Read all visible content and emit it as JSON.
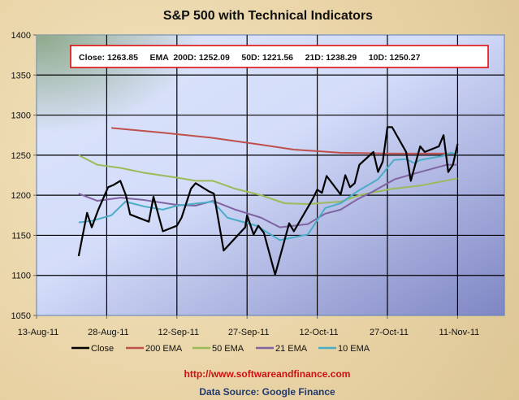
{
  "chart_data": {
    "type": "line",
    "title": "S&P 500 with Technical Indicators",
    "x_unit": "days since 13-Aug-11",
    "xlim": [
      0,
      100
    ],
    "ylim": [
      1050,
      1400
    ],
    "yticks": [
      1050,
      1100,
      1150,
      1200,
      1250,
      1300,
      1350,
      1400
    ],
    "xtick_labels": [
      "13-Aug-11",
      "28-Aug-11",
      "12-Sep-11",
      "27-Sep-11",
      "12-Oct-11",
      "27-Oct-11",
      "11-Nov-11"
    ],
    "xtick_days": [
      0,
      15,
      30,
      45,
      60,
      75,
      90
    ],
    "grid": true,
    "legend_position": "bottom",
    "info_box": "Close: 1263.85     EMA  200D: 1252.09     50D: 1221.56     21D: 1238.29     10D: 1250.27",
    "series": [
      {
        "name": "Close",
        "color": "#000000",
        "points": [
          [
            9,
            1124
          ],
          [
            10.8,
            1178
          ],
          [
            11.8,
            1160
          ],
          [
            13.2,
            1182
          ],
          [
            15.3,
            1210
          ],
          [
            16.5,
            1213
          ],
          [
            17.9,
            1218
          ],
          [
            19.1,
            1200
          ],
          [
            20,
            1176
          ],
          [
            24,
            1167
          ],
          [
            25,
            1198
          ],
          [
            27,
            1155
          ],
          [
            30,
            1162
          ],
          [
            31,
            1172
          ],
          [
            33,
            1208
          ],
          [
            34,
            1215
          ],
          [
            36.8,
            1205
          ],
          [
            37.9,
            1202
          ],
          [
            40,
            1131
          ],
          [
            43.8,
            1155
          ],
          [
            44.6,
            1160
          ],
          [
            45,
            1175
          ],
          [
            46.4,
            1151
          ],
          [
            47.4,
            1162
          ],
          [
            48.6,
            1153
          ],
          [
            51,
            1101
          ],
          [
            54,
            1165
          ],
          [
            55,
            1155
          ],
          [
            58,
            1185
          ],
          [
            59,
            1195
          ],
          [
            60,
            1207
          ],
          [
            61,
            1203
          ],
          [
            62,
            1224
          ],
          [
            65,
            1201
          ],
          [
            66,
            1225
          ],
          [
            67,
            1210
          ],
          [
            68,
            1215
          ],
          [
            69,
            1238
          ],
          [
            72,
            1254
          ],
          [
            73,
            1229
          ],
          [
            74,
            1242
          ],
          [
            75,
            1285
          ],
          [
            76,
            1285
          ],
          [
            79,
            1254
          ],
          [
            80,
            1218
          ],
          [
            82,
            1261
          ],
          [
            83,
            1254
          ],
          [
            86,
            1261
          ],
          [
            87,
            1275
          ],
          [
            88,
            1229
          ],
          [
            89,
            1238
          ],
          [
            90,
            1264
          ]
        ]
      },
      {
        "name": "200 EMA",
        "color": "#c0504d",
        "points": [
          [
            16,
            1284
          ],
          [
            27,
            1278
          ],
          [
            37,
            1272
          ],
          [
            48,
            1263
          ],
          [
            55,
            1257
          ],
          [
            65,
            1253
          ],
          [
            76,
            1252
          ],
          [
            90,
            1252
          ]
        ]
      },
      {
        "name": "50 EMA",
        "color": "#9bbb59",
        "points": [
          [
            9,
            1250
          ],
          [
            13,
            1238
          ],
          [
            18,
            1234
          ],
          [
            23,
            1228
          ],
          [
            30,
            1222
          ],
          [
            34,
            1218
          ],
          [
            37.7,
            1218
          ],
          [
            42.5,
            1208
          ],
          [
            48,
            1200
          ],
          [
            53,
            1190
          ],
          [
            58,
            1189
          ],
          [
            65,
            1192
          ],
          [
            69,
            1200
          ],
          [
            76,
            1208
          ],
          [
            82,
            1212
          ],
          [
            90,
            1221
          ]
        ]
      },
      {
        "name": "21 EMA",
        "color": "#8064a2",
        "points": [
          [
            9,
            1202
          ],
          [
            13,
            1193
          ],
          [
            18,
            1197
          ],
          [
            23,
            1194
          ],
          [
            30,
            1188
          ],
          [
            34,
            1187
          ],
          [
            37.7,
            1193
          ],
          [
            42.5,
            1182
          ],
          [
            48,
            1172
          ],
          [
            52,
            1160
          ],
          [
            58,
            1164
          ],
          [
            61.7,
            1177
          ],
          [
            65,
            1182
          ],
          [
            68.6,
            1195
          ],
          [
            72,
            1205
          ],
          [
            76.6,
            1220
          ],
          [
            82,
            1229
          ],
          [
            87.7,
            1238
          ],
          [
            90,
            1238
          ]
        ]
      },
      {
        "name": "10 EMA",
        "color": "#4bacc6",
        "points": [
          [
            9,
            1166
          ],
          [
            11.8,
            1168
          ],
          [
            16,
            1175
          ],
          [
            19,
            1192
          ],
          [
            23,
            1186
          ],
          [
            27,
            1182
          ],
          [
            30,
            1187
          ],
          [
            34.7,
            1190
          ],
          [
            37.7,
            1192
          ],
          [
            40.8,
            1172
          ],
          [
            47,
            1162
          ],
          [
            52,
            1144
          ],
          [
            58,
            1151
          ],
          [
            61.7,
            1184
          ],
          [
            65,
            1190
          ],
          [
            68.6,
            1205
          ],
          [
            73,
            1220
          ],
          [
            76.4,
            1244
          ],
          [
            79,
            1245
          ],
          [
            80.8,
            1240
          ],
          [
            82,
            1244
          ],
          [
            86.8,
            1249
          ],
          [
            88.6,
            1253
          ],
          [
            90,
            1251
          ]
        ]
      }
    ]
  },
  "footer": {
    "url": "http://www.softwareandfinance.com",
    "source": "Data Source: Google Finance"
  }
}
